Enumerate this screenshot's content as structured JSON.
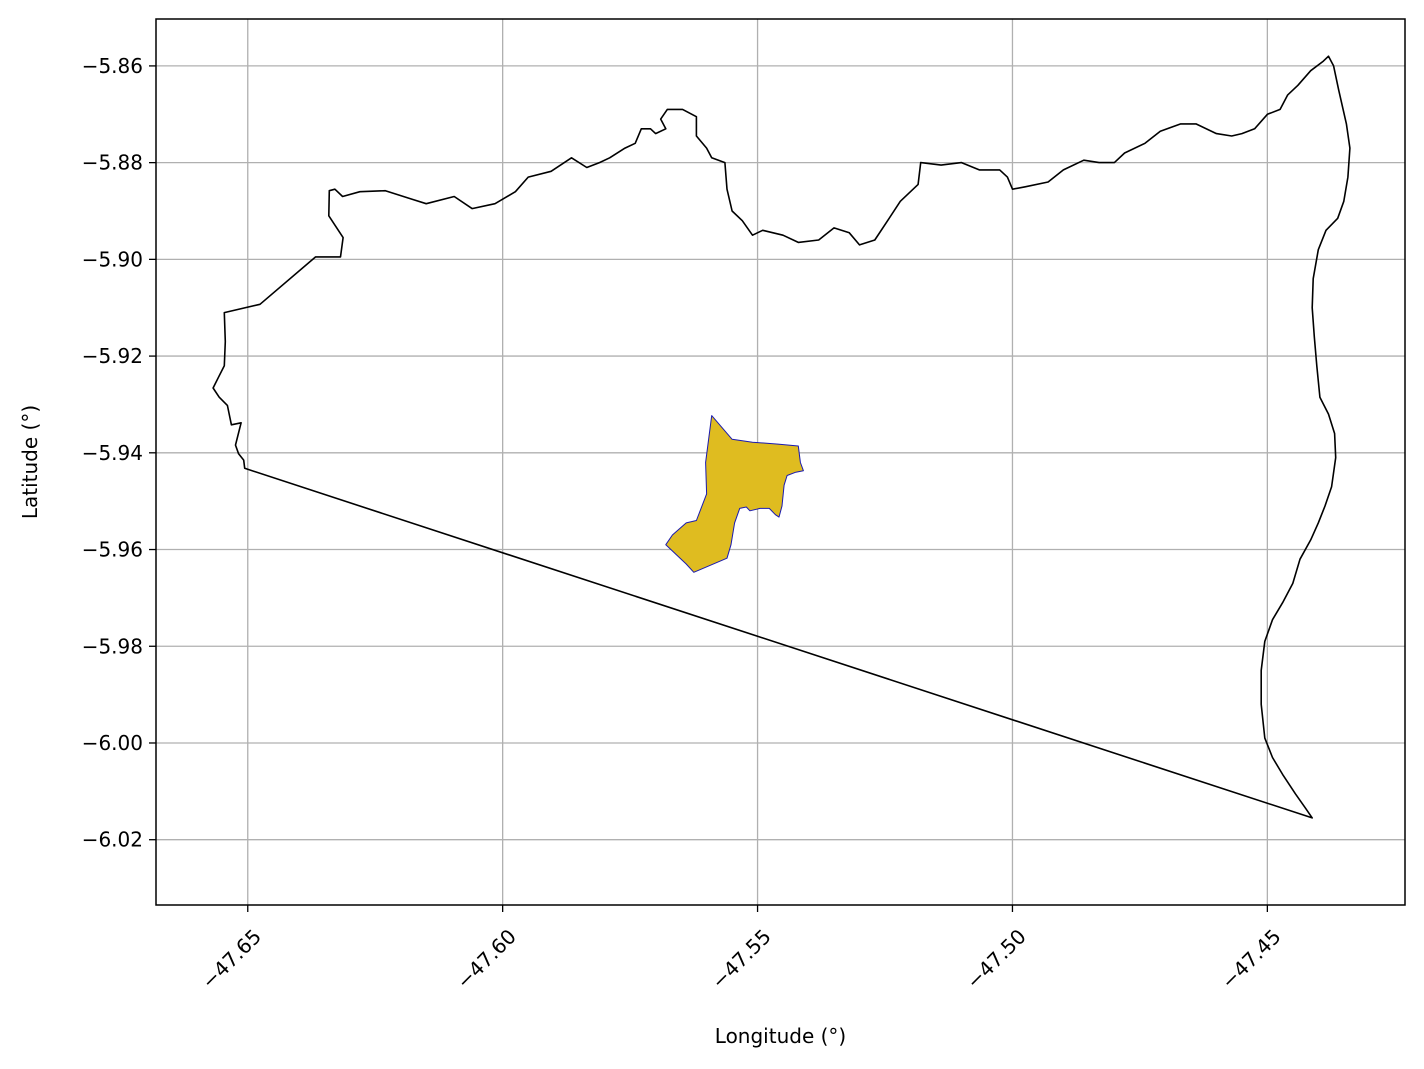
{
  "chart_data": {
    "type": "map",
    "xlabel": "Longitude (°)",
    "ylabel": "Latitude (°)",
    "xlim": [
      -47.668,
      -47.423
    ],
    "ylim": [
      -6.0335,
      -5.8503
    ],
    "grid": true,
    "xticks": [
      {
        "value": -47.65,
        "label": "−47.65"
      },
      {
        "value": -47.6,
        "label": "−47.60"
      },
      {
        "value": -47.55,
        "label": "−47.55"
      },
      {
        "value": -47.5,
        "label": "−47.50"
      },
      {
        "value": -47.45,
        "label": "−47.45"
      }
    ],
    "yticks": [
      {
        "value": -5.86,
        "label": "−5.86"
      },
      {
        "value": -5.88,
        "label": "−5.88"
      },
      {
        "value": -5.9,
        "label": "−5.90"
      },
      {
        "value": -5.92,
        "label": "−5.92"
      },
      {
        "value": -5.94,
        "label": "−5.94"
      },
      {
        "value": -5.96,
        "label": "−5.96"
      },
      {
        "value": -5.98,
        "label": "−5.98"
      },
      {
        "value": -6.0,
        "label": "−6.00"
      },
      {
        "value": -6.02,
        "label": "−6.02"
      }
    ],
    "layers": [
      {
        "kind": "boundary",
        "fill": "none",
        "stroke": "#000000",
        "coords": [
          [
            -47.6506,
            -5.9432
          ],
          [
            -47.6508,
            -5.9415
          ],
          [
            -47.6518,
            -5.9402
          ],
          [
            -47.6524,
            -5.9384
          ],
          [
            -47.6513,
            -5.9338
          ],
          [
            -47.6532,
            -5.9342
          ],
          [
            -47.6536,
            -5.9322
          ],
          [
            -47.654,
            -5.9302
          ],
          [
            -47.6556,
            -5.9285
          ],
          [
            -47.6568,
            -5.9266
          ],
          [
            -47.6558,
            -5.9245
          ],
          [
            -47.6546,
            -5.922
          ],
          [
            -47.6544,
            -5.917
          ],
          [
            -47.6546,
            -5.911
          ],
          [
            -47.6476,
            -5.9093
          ],
          [
            -47.6367,
            -5.8995
          ],
          [
            -47.6318,
            -5.8995
          ],
          [
            -47.6313,
            -5.8955
          ],
          [
            -47.6341,
            -5.891
          ],
          [
            -47.634,
            -5.8858
          ],
          [
            -47.6329,
            -5.8855
          ],
          [
            -47.6314,
            -5.887
          ],
          [
            -47.628,
            -5.886
          ],
          [
            -47.623,
            -5.8858
          ],
          [
            -47.618,
            -5.8875
          ],
          [
            -47.615,
            -5.8885
          ],
          [
            -47.6095,
            -5.887
          ],
          [
            -47.606,
            -5.8895
          ],
          [
            -47.6015,
            -5.8885
          ],
          [
            -47.5975,
            -5.886
          ],
          [
            -47.595,
            -5.883
          ],
          [
            -47.5905,
            -5.8818
          ],
          [
            -47.5865,
            -5.879
          ],
          [
            -47.5835,
            -5.881
          ],
          [
            -47.581,
            -5.88
          ],
          [
            -47.579,
            -5.879
          ],
          [
            -47.576,
            -5.877
          ],
          [
            -47.574,
            -5.876
          ],
          [
            -47.5728,
            -5.873
          ],
          [
            -47.571,
            -5.873
          ],
          [
            -47.57,
            -5.874
          ],
          [
            -47.568,
            -5.873
          ],
          [
            -47.569,
            -5.871
          ],
          [
            -47.5677,
            -5.869
          ],
          [
            -47.5647,
            -5.869
          ],
          [
            -47.562,
            -5.8705
          ],
          [
            -47.562,
            -5.8745
          ],
          [
            -47.56,
            -5.877
          ],
          [
            -47.559,
            -5.879
          ],
          [
            -47.5564,
            -5.88
          ],
          [
            -47.556,
            -5.8855
          ],
          [
            -47.555,
            -5.89
          ],
          [
            -47.553,
            -5.892
          ],
          [
            -47.551,
            -5.895
          ],
          [
            -47.549,
            -5.894
          ],
          [
            -47.545,
            -5.895
          ],
          [
            -47.542,
            -5.8965
          ],
          [
            -47.538,
            -5.896
          ],
          [
            -47.535,
            -5.8935
          ],
          [
            -47.532,
            -5.8945
          ],
          [
            -47.53,
            -5.897
          ],
          [
            -47.527,
            -5.896
          ],
          [
            -47.5245,
            -5.892
          ],
          [
            -47.522,
            -5.888
          ],
          [
            -47.5185,
            -5.8845
          ],
          [
            -47.518,
            -5.88
          ],
          [
            -47.514,
            -5.8805
          ],
          [
            -47.51,
            -5.88
          ],
          [
            -47.5065,
            -5.8815
          ],
          [
            -47.5025,
            -5.8815
          ],
          [
            -47.501,
            -5.883
          ],
          [
            -47.5,
            -5.8855
          ],
          [
            -47.4975,
            -5.885
          ],
          [
            -47.493,
            -5.884
          ],
          [
            -47.49,
            -5.8815
          ],
          [
            -47.486,
            -5.8795
          ],
          [
            -47.483,
            -5.88
          ],
          [
            -47.48,
            -5.88
          ],
          [
            -47.478,
            -5.878
          ],
          [
            -47.474,
            -5.876
          ],
          [
            -47.471,
            -5.8735
          ],
          [
            -47.467,
            -5.872
          ],
          [
            -47.464,
            -5.872
          ],
          [
            -47.46,
            -5.874
          ],
          [
            -47.457,
            -5.8745
          ],
          [
            -47.455,
            -5.874
          ],
          [
            -47.4525,
            -5.873
          ],
          [
            -47.45,
            -5.87
          ],
          [
            -47.4475,
            -5.869
          ],
          [
            -47.446,
            -5.866
          ],
          [
            -47.444,
            -5.864
          ],
          [
            -47.4415,
            -5.861
          ],
          [
            -47.439,
            -5.859
          ],
          [
            -47.438,
            -5.858
          ],
          [
            -47.437,
            -5.86
          ],
          [
            -47.436,
            -5.865
          ],
          [
            -47.4345,
            -5.872
          ],
          [
            -47.4338,
            -5.877
          ],
          [
            -47.4342,
            -5.883
          ],
          [
            -47.435,
            -5.888
          ],
          [
            -47.4362,
            -5.8915
          ],
          [
            -47.4385,
            -5.894
          ],
          [
            -47.44,
            -5.898
          ],
          [
            -47.441,
            -5.904
          ],
          [
            -47.4412,
            -5.91
          ],
          [
            -47.4408,
            -5.916
          ],
          [
            -47.4403,
            -5.922
          ],
          [
            -47.4397,
            -5.9285
          ],
          [
            -47.438,
            -5.932
          ],
          [
            -47.4368,
            -5.936
          ],
          [
            -47.4366,
            -5.941
          ],
          [
            -47.4374,
            -5.947
          ],
          [
            -47.4387,
            -5.951
          ],
          [
            -47.44,
            -5.9545
          ],
          [
            -47.4415,
            -5.958
          ],
          [
            -47.4436,
            -5.962
          ],
          [
            -47.445,
            -5.967
          ],
          [
            -47.447,
            -5.971
          ],
          [
            -47.449,
            -5.9745
          ],
          [
            -47.4505,
            -5.979
          ],
          [
            -47.4512,
            -5.985
          ],
          [
            -47.4512,
            -5.992
          ],
          [
            -47.4505,
            -5.999
          ],
          [
            -47.449,
            -6.003
          ],
          [
            -47.447,
            -6.0065
          ],
          [
            -47.4445,
            -6.0105
          ],
          [
            -47.4425,
            -6.0135
          ],
          [
            -47.4412,
            -6.0155
          ],
          [
            -47.6506,
            -5.9432
          ]
        ]
      },
      {
        "kind": "area",
        "fill": "#dfbc20",
        "stroke": "#1a1ab0",
        "coords": [
          [
            -47.559,
            -5.9323
          ],
          [
            -47.555,
            -5.9372
          ],
          [
            -47.551,
            -5.9378
          ],
          [
            -47.546,
            -5.9382
          ],
          [
            -47.542,
            -5.9386
          ],
          [
            -47.5416,
            -5.942
          ],
          [
            -47.541,
            -5.9437
          ],
          [
            -47.5425,
            -5.944
          ],
          [
            -47.5442,
            -5.9447
          ],
          [
            -47.5448,
            -5.9467
          ],
          [
            -47.5452,
            -5.951
          ],
          [
            -47.5458,
            -5.9533
          ],
          [
            -47.5465,
            -5.9528
          ],
          [
            -47.5477,
            -5.9515
          ],
          [
            -47.5495,
            -5.9515
          ],
          [
            -47.5515,
            -5.952
          ],
          [
            -47.5522,
            -5.9512
          ],
          [
            -47.5535,
            -5.9515
          ],
          [
            -47.5545,
            -5.9545
          ],
          [
            -47.5552,
            -5.959
          ],
          [
            -47.556,
            -5.9618
          ],
          [
            -47.5625,
            -5.9647
          ],
          [
            -47.564,
            -5.963
          ],
          [
            -47.568,
            -5.959
          ],
          [
            -47.5667,
            -5.957
          ],
          [
            -47.564,
            -5.9545
          ],
          [
            -47.562,
            -5.954
          ],
          [
            -47.56,
            -5.9485
          ],
          [
            -47.5602,
            -5.942
          ],
          [
            -47.559,
            -5.9323
          ]
        ]
      }
    ]
  }
}
